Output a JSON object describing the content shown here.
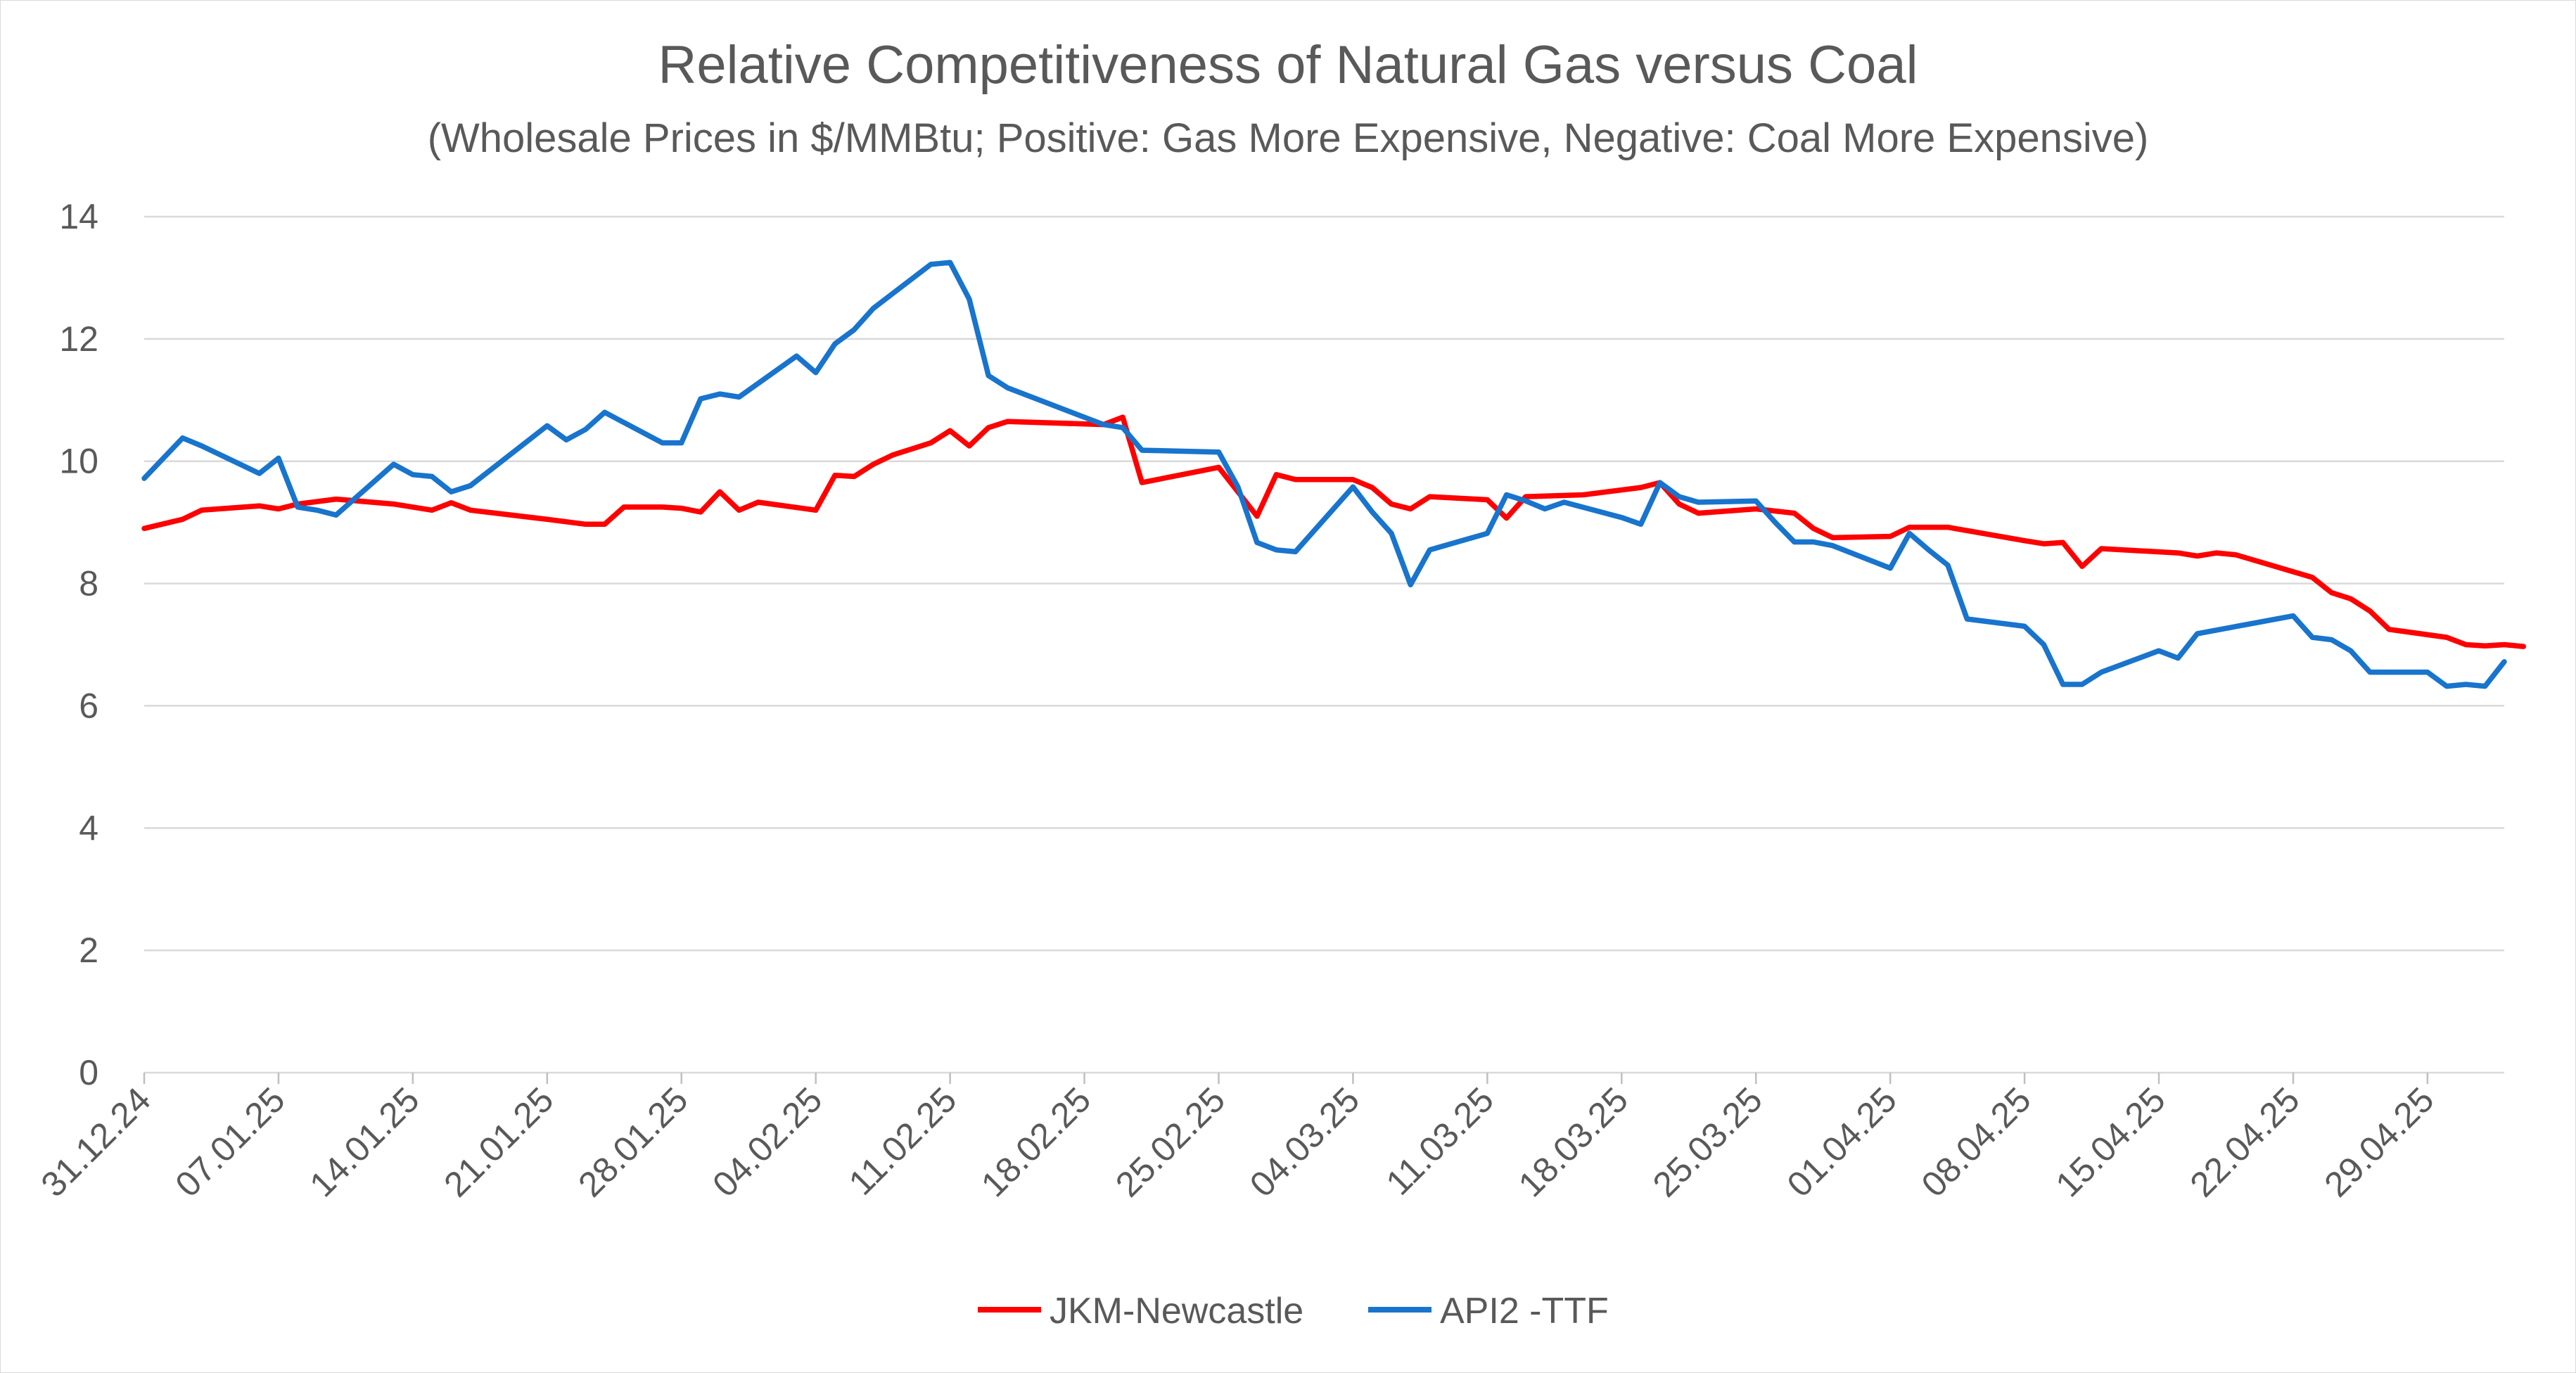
{
  "chart_data": {
    "type": "line",
    "title": "Relative Competitiveness of Natural Gas versus Coal",
    "subtitle": "(Wholesale Prices in $/MMBtu; Positive: Gas More Expensive, Negative: Coal More Expensive)",
    "xlabel": "",
    "ylabel": "",
    "ylim": [
      0,
      14
    ],
    "yticks": [
      0,
      2,
      4,
      6,
      8,
      10,
      12,
      14
    ],
    "grid": true,
    "legend": "bottom",
    "x_tick_labels": [
      "31.12.24",
      "07.01.25",
      "14.01.25",
      "21.01.25",
      "28.01.25",
      "04.02.25",
      "11.02.25",
      "18.02.25",
      "25.02.25",
      "04.03.25",
      "11.03.25",
      "18.03.25",
      "25.03.25",
      "01.04.25",
      "08.04.25",
      "15.04.25",
      "22.04.25",
      "29.04.25"
    ],
    "x_range_days": [
      0,
      123
    ],
    "series": [
      {
        "name": "JKM-Newcastle",
        "color": "#ff0000",
        "points": [
          [
            0,
            8.9
          ],
          [
            2,
            9.05
          ],
          [
            3,
            9.2
          ],
          [
            6,
            9.27
          ],
          [
            7,
            9.22
          ],
          [
            8,
            9.3
          ],
          [
            10,
            9.38
          ],
          [
            13,
            9.3
          ],
          [
            15,
            9.2
          ],
          [
            16,
            9.32
          ],
          [
            17,
            9.2
          ],
          [
            21,
            9.05
          ],
          [
            23,
            8.97
          ],
          [
            24,
            8.97
          ],
          [
            25,
            9.25
          ],
          [
            27,
            9.25
          ],
          [
            28,
            9.23
          ],
          [
            29,
            9.17
          ],
          [
            30,
            9.5
          ],
          [
            31,
            9.2
          ],
          [
            32,
            9.33
          ],
          [
            35,
            9.2
          ],
          [
            36,
            9.77
          ],
          [
            37,
            9.75
          ],
          [
            38,
            9.95
          ],
          [
            39,
            10.1
          ],
          [
            41,
            10.3
          ],
          [
            42,
            10.5
          ],
          [
            43,
            10.25
          ],
          [
            44,
            10.55
          ],
          [
            45,
            10.65
          ],
          [
            50,
            10.6
          ],
          [
            51,
            10.72
          ],
          [
            52,
            9.65
          ],
          [
            56,
            9.9
          ],
          [
            57,
            9.5
          ],
          [
            58,
            9.1
          ],
          [
            59,
            9.78
          ],
          [
            60,
            9.7
          ],
          [
            63,
            9.7
          ],
          [
            64,
            9.57
          ],
          [
            65,
            9.3
          ],
          [
            66,
            9.22
          ],
          [
            67,
            9.42
          ],
          [
            70,
            9.37
          ],
          [
            71,
            9.07
          ],
          [
            72,
            9.42
          ],
          [
            75,
            9.45
          ],
          [
            78,
            9.57
          ],
          [
            79,
            9.65
          ],
          [
            80,
            9.3
          ],
          [
            81,
            9.15
          ],
          [
            84,
            9.22
          ],
          [
            86,
            9.15
          ],
          [
            87,
            8.9
          ],
          [
            88,
            8.75
          ],
          [
            91,
            8.77
          ],
          [
            92,
            8.92
          ],
          [
            94,
            8.92
          ],
          [
            98,
            8.7
          ],
          [
            99,
            8.65
          ],
          [
            100,
            8.67
          ],
          [
            101,
            8.28
          ],
          [
            102,
            8.57
          ],
          [
            106,
            8.5
          ],
          [
            107,
            8.45
          ],
          [
            108,
            8.5
          ],
          [
            109,
            8.47
          ],
          [
            113,
            8.1
          ],
          [
            114,
            7.85
          ],
          [
            115,
            7.75
          ],
          [
            116,
            7.55
          ],
          [
            117,
            7.25
          ],
          [
            120,
            7.12
          ],
          [
            121,
            7.0
          ],
          [
            122,
            6.98
          ],
          [
            123,
            7.0
          ],
          [
            124,
            6.97
          ]
        ]
      },
      {
        "name": "API2 -TTF",
        "color": "#1874cd",
        "points": [
          [
            0,
            9.72
          ],
          [
            2,
            10.38
          ],
          [
            3,
            10.25
          ],
          [
            6,
            9.8
          ],
          [
            7,
            10.05
          ],
          [
            8,
            9.25
          ],
          [
            9,
            9.2
          ],
          [
            10,
            9.12
          ],
          [
            13,
            9.95
          ],
          [
            14,
            9.78
          ],
          [
            15,
            9.75
          ],
          [
            16,
            9.5
          ],
          [
            17,
            9.6
          ],
          [
            21,
            10.58
          ],
          [
            22,
            10.35
          ],
          [
            23,
            10.52
          ],
          [
            24,
            10.8
          ],
          [
            27,
            10.3
          ],
          [
            28,
            10.3
          ],
          [
            29,
            11.02
          ],
          [
            30,
            11.1
          ],
          [
            31,
            11.05
          ],
          [
            34,
            11.72
          ],
          [
            35,
            11.45
          ],
          [
            36,
            11.92
          ],
          [
            37,
            12.15
          ],
          [
            38,
            12.5
          ],
          [
            41,
            13.22
          ],
          [
            42,
            13.25
          ],
          [
            43,
            12.65
          ],
          [
            44,
            11.4
          ],
          [
            45,
            11.2
          ],
          [
            50,
            10.6
          ],
          [
            51,
            10.55
          ],
          [
            52,
            10.18
          ],
          [
            56,
            10.15
          ],
          [
            57,
            9.58
          ],
          [
            58,
            8.67
          ],
          [
            59,
            8.55
          ],
          [
            60,
            8.52
          ],
          [
            63,
            9.58
          ],
          [
            64,
            9.17
          ],
          [
            65,
            8.82
          ],
          [
            66,
            7.98
          ],
          [
            67,
            8.55
          ],
          [
            70,
            8.82
          ],
          [
            71,
            9.45
          ],
          [
            72,
            9.35
          ],
          [
            73,
            9.22
          ],
          [
            74,
            9.33
          ],
          [
            77,
            9.08
          ],
          [
            78,
            8.97
          ],
          [
            79,
            9.65
          ],
          [
            80,
            9.42
          ],
          [
            81,
            9.33
          ],
          [
            84,
            9.35
          ],
          [
            85,
            9.0
          ],
          [
            86,
            8.68
          ],
          [
            87,
            8.68
          ],
          [
            88,
            8.62
          ],
          [
            91,
            8.25
          ],
          [
            92,
            8.82
          ],
          [
            93,
            8.55
          ],
          [
            94,
            8.3
          ],
          [
            95,
            7.42
          ],
          [
            98,
            7.3
          ],
          [
            99,
            7.0
          ],
          [
            100,
            6.35
          ],
          [
            101,
            6.35
          ],
          [
            102,
            6.55
          ],
          [
            105,
            6.9
          ],
          [
            106,
            6.78
          ],
          [
            107,
            7.18
          ],
          [
            112,
            7.47
          ],
          [
            113,
            7.12
          ],
          [
            114,
            7.08
          ],
          [
            115,
            6.9
          ],
          [
            116,
            6.55
          ],
          [
            119,
            6.55
          ],
          [
            120,
            6.32
          ],
          [
            121,
            6.35
          ],
          [
            122,
            6.32
          ],
          [
            123,
            6.72
          ]
        ]
      }
    ]
  }
}
